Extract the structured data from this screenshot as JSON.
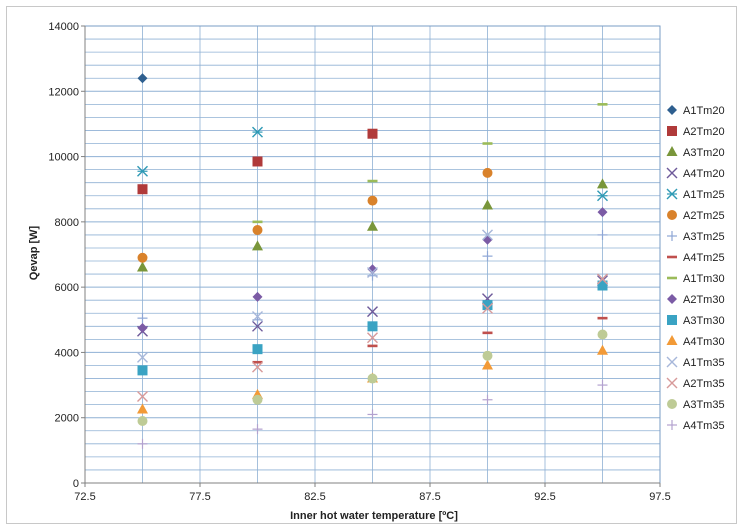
{
  "chart_data": {
    "type": "scatter",
    "title": "",
    "xlabel": "Inner hot water temperature [ºC]",
    "ylabel": "Qevap [W]",
    "xlim": [
      72.5,
      97.5
    ],
    "ylim": [
      0,
      14000
    ],
    "x_ticks": [
      "72.5",
      "77.5",
      "82.5",
      "87.5",
      "92.5",
      "97.5"
    ],
    "y_ticks": [
      "0",
      "2000",
      "4000",
      "6000",
      "8000",
      "10000",
      "12000",
      "14000"
    ],
    "grid": true,
    "legend_position": "right",
    "x": [
      75,
      80,
      85,
      90,
      95
    ],
    "series": [
      {
        "name": "A1Tm20",
        "marker": "diamond",
        "color": "#2E5F8F",
        "values": [
          12400,
          null,
          null,
          null,
          null
        ]
      },
      {
        "name": "A2Tm20",
        "marker": "square",
        "color": "#B03A3A",
        "values": [
          9000,
          9850,
          10700,
          null,
          null
        ]
      },
      {
        "name": "A3Tm20",
        "marker": "triangle",
        "color": "#79963A",
        "values": [
          6600,
          7250,
          7850,
          8500,
          9150
        ]
      },
      {
        "name": "A4Tm20",
        "marker": "x",
        "color": "#6E5A9A",
        "values": [
          4650,
          4800,
          5250,
          5650,
          6200
        ]
      },
      {
        "name": "A1Tm25",
        "marker": "star",
        "color": "#2F9AB5",
        "values": [
          9550,
          10750,
          null,
          null,
          8800
        ]
      },
      {
        "name": "A2Tm25",
        "marker": "circle",
        "color": "#D9822B",
        "values": [
          6900,
          7750,
          8650,
          9500,
          null
        ]
      },
      {
        "name": "A3Tm25",
        "marker": "plus",
        "color": "#8EA7D6",
        "values": [
          5050,
          5000,
          6350,
          6950,
          7600
        ]
      },
      {
        "name": "A4Tm25",
        "marker": "dash",
        "color": "#C0504D",
        "values": [
          null,
          3700,
          4200,
          4600,
          5050
        ]
      },
      {
        "name": "A1Tm30",
        "marker": "dash",
        "color": "#9BBB59",
        "values": [
          null,
          8000,
          9250,
          10400,
          11600
        ]
      },
      {
        "name": "A2Tm30",
        "marker": "diamond",
        "color": "#7B5BA5",
        "values": [
          4750,
          5700,
          6550,
          7450,
          8300
        ]
      },
      {
        "name": "A3Tm30",
        "marker": "square",
        "color": "#3AA3C3",
        "values": [
          3450,
          4100,
          4800,
          5450,
          6050
        ]
      },
      {
        "name": "A4Tm30",
        "marker": "triangle",
        "color": "#F29A37",
        "values": [
          2250,
          2700,
          3200,
          3600,
          4050
        ]
      },
      {
        "name": "A1Tm35",
        "marker": "x",
        "color": "#A7B7DA",
        "values": [
          3850,
          5100,
          6450,
          7600,
          6250
        ]
      },
      {
        "name": "A2Tm35",
        "marker": "x",
        "color": "#D79A9A",
        "values": [
          2650,
          3550,
          4450,
          5350,
          6250
        ]
      },
      {
        "name": "A3Tm35",
        "marker": "circle",
        "color": "#BECB96",
        "values": [
          1900,
          2550,
          3200,
          3900,
          4550
        ]
      },
      {
        "name": "A4Tm35",
        "marker": "plus",
        "color": "#B3A2CF",
        "values": [
          1200,
          1650,
          2100,
          2550,
          3000
        ]
      }
    ]
  }
}
